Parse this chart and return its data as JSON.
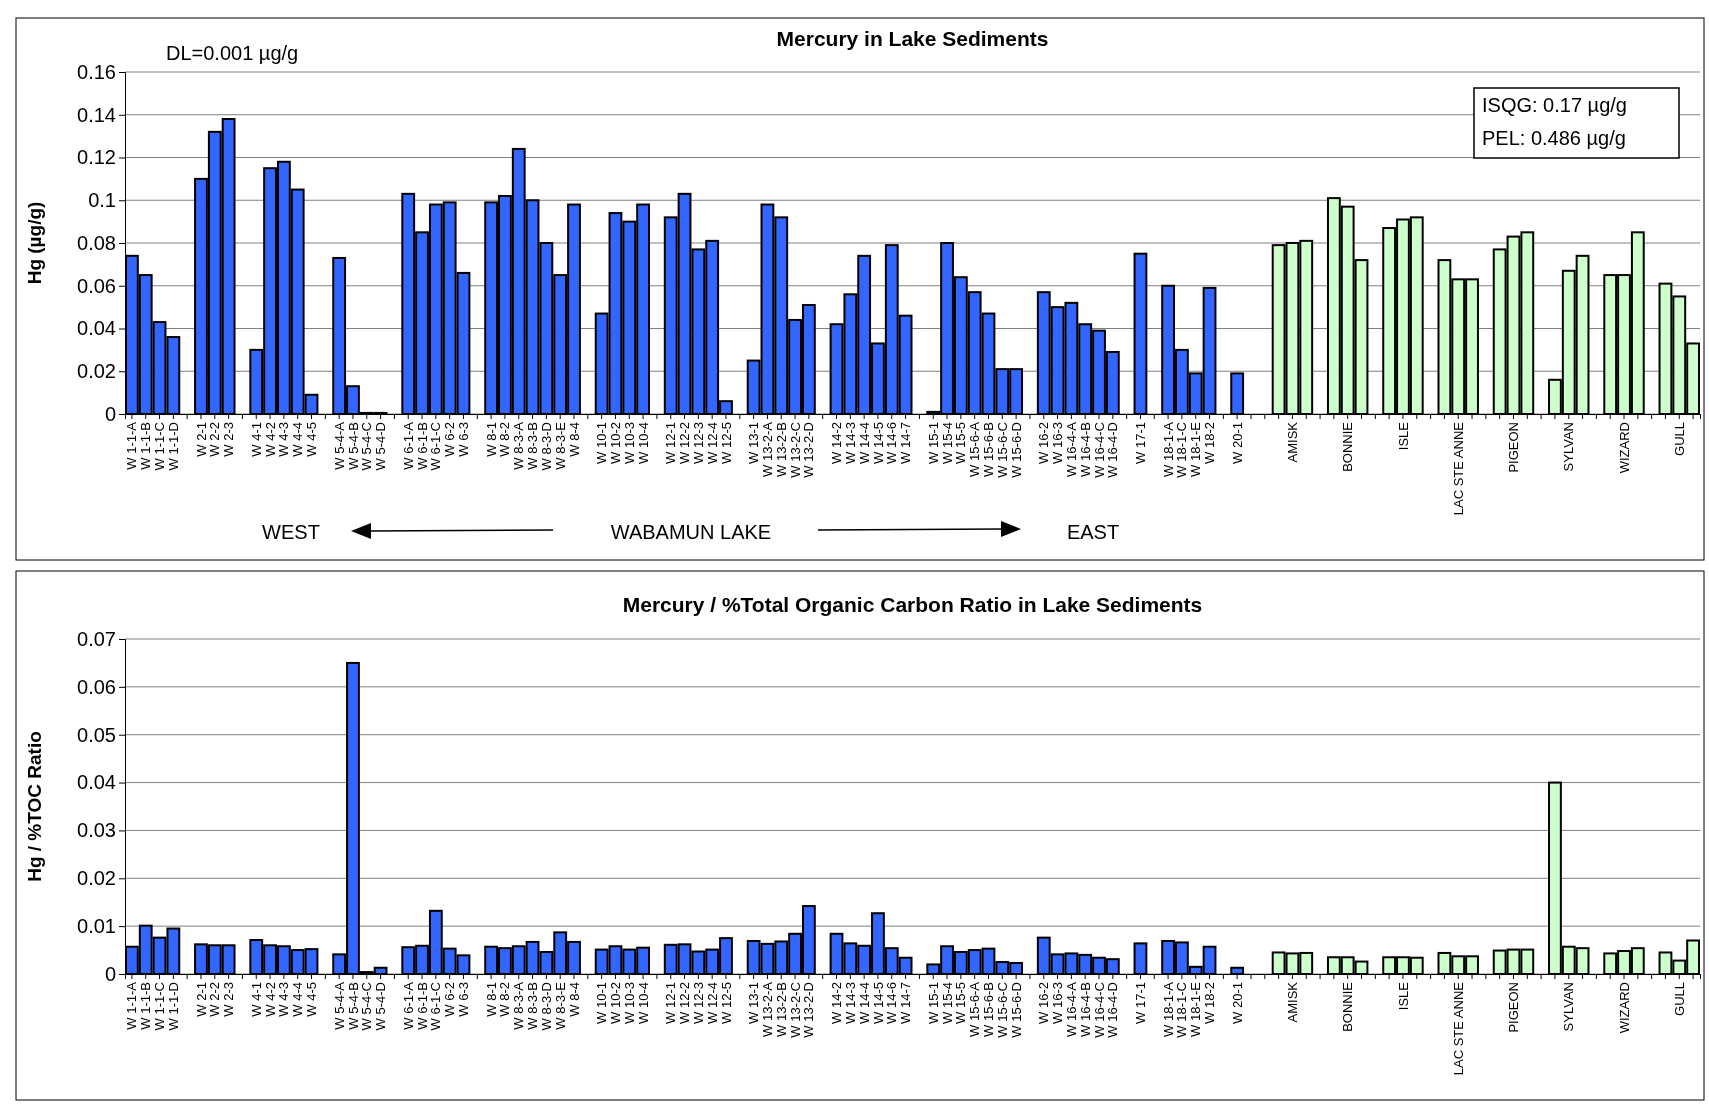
{
  "chart_data": [
    {
      "type": "bar",
      "title": "Mercury in Lake Sediments",
      "ylabel": "Hg (µg/g)",
      "categories": [
        "W 1-1-A",
        "W 1-1-B",
        "W 1-1-C",
        "W 1-1-D",
        null,
        "W 2-1",
        "W 2-2",
        "W 2-3",
        null,
        "W 4-1",
        "W 4-2",
        "W 4-3",
        "W 4-4",
        "W 4-5",
        null,
        "W 5-4-A",
        "W 5-4-B",
        "W 5-4-C",
        "W 5-4-D",
        null,
        "W 6-1-A",
        "W 6-1-B",
        "W 6-1-C",
        "W 6-2",
        "W 6-3",
        null,
        "W 8-1",
        "W 8-2",
        "W 8-3-A",
        "W 8-3-B",
        "W 8-3-D",
        "W 8-3-E",
        "W 8-4",
        null,
        "W 10-1",
        "W 10-2",
        "W 10-3",
        "W 10-4",
        null,
        "W 12-1",
        "W 12-2",
        "W 12-3",
        "W 12-4",
        "W 12-5",
        null,
        "W 13-1",
        "W 13-2-A",
        "W 13-2-B",
        "W 13-2-C",
        "W 13-2-D",
        null,
        "W 14-2",
        "W 14-3",
        "W 14-4",
        "W 14-5",
        "W 14-6",
        "W 14-7",
        null,
        "W 15-1",
        "W 15-4",
        "W 15-5",
        "W 15-6-A",
        "W 15-6-B",
        "W 15-6-C",
        "W 15-6-D",
        null,
        "W 16-2",
        "W 16-3",
        "W 16-4-A",
        "W 16-4-B",
        "W 16-4-C",
        "W 16-4-D",
        null,
        "W 17-1",
        null,
        "W 18-1-A",
        "W 18-1-C",
        "W 18-1-E",
        "W 18-2",
        null,
        "W 20-1",
        null,
        null,
        null,
        "AMISK",
        null,
        null,
        null,
        "BONNIE",
        null,
        null,
        null,
        "ISLE",
        null,
        null,
        null,
        "LAC STE ANNE",
        null,
        null,
        null,
        "PIGEON",
        null,
        null,
        null,
        "SYLVAN",
        null,
        null,
        null,
        "WIZARD",
        null,
        null,
        null,
        "GULL",
        null
      ],
      "values": [
        0.074,
        0.065,
        0.043,
        0.036,
        null,
        0.11,
        0.132,
        0.138,
        null,
        0.03,
        0.115,
        0.118,
        0.105,
        0.009,
        null,
        0.073,
        0.013,
        0.0005,
        0.0005,
        null,
        0.103,
        0.085,
        0.098,
        0.099,
        0.066,
        null,
        0.099,
        0.102,
        0.124,
        0.1,
        0.08,
        0.065,
        0.098,
        null,
        0.047,
        0.094,
        0.09,
        0.098,
        null,
        0.092,
        0.103,
        0.077,
        0.081,
        0.006,
        null,
        0.025,
        0.098,
        0.092,
        0.044,
        0.051,
        null,
        0.042,
        0.056,
        0.074,
        0.033,
        0.079,
        0.046,
        null,
        0.001,
        0.08,
        0.064,
        0.057,
        0.047,
        0.021,
        0.021,
        null,
        0.057,
        0.05,
        0.052,
        0.042,
        0.039,
        0.029,
        null,
        0.075,
        null,
        0.06,
        0.03,
        0.019,
        0.059,
        null,
        0.019,
        null,
        null,
        0.079,
        0.08,
        0.081,
        null,
        0.101,
        0.097,
        0.072,
        null,
        0.087,
        0.091,
        0.092,
        null,
        0.072,
        0.063,
        0.063,
        null,
        0.077,
        0.083,
        0.085,
        null,
        0.016,
        0.067,
        0.074,
        null,
        0.065,
        0.065,
        0.085,
        null,
        0.061,
        0.055,
        0.033
      ],
      "colors": [
        "#3366ff",
        "#3366ff",
        "#3366ff",
        "#3366ff",
        null,
        "#3366ff",
        "#3366ff",
        "#3366ff",
        null,
        "#3366ff",
        "#3366ff",
        "#3366ff",
        "#3366ff",
        "#3366ff",
        null,
        "#3366ff",
        "#3366ff",
        "#3366ff",
        "#3366ff",
        null,
        "#3366ff",
        "#3366ff",
        "#3366ff",
        "#3366ff",
        "#3366ff",
        null,
        "#3366ff",
        "#3366ff",
        "#3366ff",
        "#3366ff",
        "#3366ff",
        "#3366ff",
        "#3366ff",
        null,
        "#3366ff",
        "#3366ff",
        "#3366ff",
        "#3366ff",
        null,
        "#3366ff",
        "#3366ff",
        "#3366ff",
        "#3366ff",
        "#3366ff",
        null,
        "#3366ff",
        "#3366ff",
        "#3366ff",
        "#3366ff",
        "#3366ff",
        null,
        "#3366ff",
        "#3366ff",
        "#3366ff",
        "#3366ff",
        "#3366ff",
        "#3366ff",
        null,
        "#3366ff",
        "#3366ff",
        "#3366ff",
        "#3366ff",
        "#3366ff",
        "#3366ff",
        "#3366ff",
        null,
        "#3366ff",
        "#3366ff",
        "#3366ff",
        "#3366ff",
        "#3366ff",
        "#3366ff",
        null,
        "#3366ff",
        null,
        "#3366ff",
        "#3366ff",
        "#3366ff",
        "#3366ff",
        null,
        "#3366ff",
        null,
        null,
        "#ccffcc",
        "#ccffcc",
        "#ccffcc",
        null,
        "#ccffcc",
        "#ccffcc",
        "#ccffcc",
        null,
        "#ccffcc",
        "#ccffcc",
        "#ccffcc",
        null,
        "#ccffcc",
        "#ccffcc",
        "#ccffcc",
        null,
        "#ccffcc",
        "#ccffcc",
        "#ccffcc",
        null,
        "#ccffcc",
        "#ccffcc",
        "#ccffcc",
        null,
        "#ccffcc",
        "#ccffcc",
        "#ccffcc",
        null,
        "#ccffcc",
        "#ccffcc",
        "#ccffcc"
      ],
      "ylim": [
        0,
        0.16
      ],
      "yticks": [
        0,
        0.02,
        0.04,
        0.06,
        0.08,
        0.1,
        0.12,
        0.14,
        0.16
      ],
      "grid": "y",
      "annotations": [
        "DL=0.001 µg/g",
        "ISQG: 0.17 µg/g",
        "PEL: 0.486 µg/g",
        "WEST",
        "WABAMUN LAKE",
        "EAST"
      ]
    },
    {
      "type": "bar",
      "title": "Mercury / %Total Organic Carbon Ratio in Lake Sediments",
      "ylabel": "Hg / %TOC Ratio",
      "categories": [
        "W 1-1-A",
        "W 1-1-B",
        "W 1-1-C",
        "W 1-1-D",
        null,
        "W 2-1",
        "W 2-2",
        "W 2-3",
        null,
        "W 4-1",
        "W 4-2",
        "W 4-3",
        "W 4-4",
        "W 4-5",
        null,
        "W 5-4-A",
        "W 5-4-B",
        "W 5-4-C",
        "W 5-4-D",
        null,
        "W 6-1-A",
        "W 6-1-B",
        "W 6-1-C",
        "W 6-2",
        "W 6-3",
        null,
        "W 8-1",
        "W 8-2",
        "W 8-3-A",
        "W 8-3-B",
        "W 8-3-D",
        "W 8-3-E",
        "W 8-4",
        null,
        "W 10-1",
        "W 10-2",
        "W 10-3",
        "W 10-4",
        null,
        "W 12-1",
        "W 12-2",
        "W 12-3",
        "W 12-4",
        "W 12-5",
        null,
        "W 13-1",
        "W 13-2-A",
        "W 13-2-B",
        "W 13-2-C",
        "W 13-2-D",
        null,
        "W 14-2",
        "W 14-3",
        "W 14-4",
        "W 14-5",
        "W 14-6",
        "W 14-7",
        null,
        "W 15-1",
        "W 15-4",
        "W 15-5",
        "W 15-6-A",
        "W 15-6-B",
        "W 15-6-C",
        "W 15-6-D",
        null,
        "W 16-2",
        "W 16-3",
        "W 16-4-A",
        "W 16-4-B",
        "W 16-4-C",
        "W 16-4-D",
        null,
        "W 17-1",
        null,
        "W 18-1-A",
        "W 18-1-C",
        "W 18-1-E",
        "W 18-2",
        null,
        "W 20-1",
        null,
        null,
        null,
        "AMISK",
        null,
        null,
        null,
        "BONNIE",
        null,
        null,
        null,
        "ISLE",
        null,
        null,
        null,
        "LAC STE ANNE",
        null,
        null,
        null,
        "PIGEON",
        null,
        null,
        null,
        "SYLVAN",
        null,
        null,
        null,
        "WIZARD",
        null,
        null,
        null,
        "GULL",
        null
      ],
      "values": [
        0.0057,
        0.0101,
        0.0076,
        0.0095,
        null,
        0.0062,
        0.006,
        0.006,
        null,
        0.0071,
        0.006,
        0.0058,
        0.005,
        0.0052,
        null,
        0.0041,
        0.065,
        0.0004,
        0.0013,
        null,
        0.0056,
        0.0059,
        0.0132,
        0.0053,
        0.0039,
        null,
        0.0057,
        0.0054,
        0.0058,
        0.0067,
        0.0046,
        0.0087,
        0.0067,
        null,
        0.0051,
        0.0058,
        0.0051,
        0.0055,
        null,
        0.0061,
        0.0062,
        0.0047,
        0.0051,
        0.0075,
        null,
        0.0069,
        0.0063,
        0.0068,
        0.0084,
        0.0142,
        null,
        0.0084,
        0.0064,
        0.0059,
        0.0127,
        0.0054,
        0.0034,
        null,
        0.002,
        0.0058,
        0.0046,
        0.005,
        0.0053,
        0.0025,
        0.0023,
        null,
        0.0076,
        0.0041,
        0.0043,
        0.004,
        0.0034,
        0.0031,
        null,
        0.0064,
        null,
        0.0069,
        0.0066,
        0.0015,
        0.0057,
        null,
        0.0013,
        null,
        null,
        0.0045,
        0.0043,
        0.0044,
        null,
        0.0035,
        0.0035,
        0.0026,
        null,
        0.0035,
        0.0035,
        0.0034,
        null,
        0.0044,
        0.0037,
        0.0037,
        null,
        0.0049,
        0.0051,
        0.0051,
        null,
        0.04,
        0.0057,
        0.0054,
        null,
        0.0043,
        0.0048,
        0.0054,
        null,
        0.0045,
        0.0028,
        0.007
      ],
      "colors": [
        "#3366ff",
        "#3366ff",
        "#3366ff",
        "#3366ff",
        null,
        "#3366ff",
        "#3366ff",
        "#3366ff",
        null,
        "#3366ff",
        "#3366ff",
        "#3366ff",
        "#3366ff",
        "#3366ff",
        null,
        "#3366ff",
        "#3366ff",
        "#3366ff",
        "#3366ff",
        null,
        "#3366ff",
        "#3366ff",
        "#3366ff",
        "#3366ff",
        "#3366ff",
        null,
        "#3366ff",
        "#3366ff",
        "#3366ff",
        "#3366ff",
        "#3366ff",
        "#3366ff",
        "#3366ff",
        null,
        "#3366ff",
        "#3366ff",
        "#3366ff",
        "#3366ff",
        null,
        "#3366ff",
        "#3366ff",
        "#3366ff",
        "#3366ff",
        "#3366ff",
        null,
        "#3366ff",
        "#3366ff",
        "#3366ff",
        "#3366ff",
        "#3366ff",
        null,
        "#3366ff",
        "#3366ff",
        "#3366ff",
        "#3366ff",
        "#3366ff",
        "#3366ff",
        null,
        "#3366ff",
        "#3366ff",
        "#3366ff",
        "#3366ff",
        "#3366ff",
        "#3366ff",
        "#3366ff",
        null,
        "#3366ff",
        "#3366ff",
        "#3366ff",
        "#3366ff",
        "#3366ff",
        "#3366ff",
        null,
        "#3366ff",
        null,
        "#3366ff",
        "#3366ff",
        "#3366ff",
        "#3366ff",
        null,
        "#3366ff",
        null,
        null,
        "#ccffcc",
        "#ccffcc",
        "#ccffcc",
        null,
        "#ccffcc",
        "#ccffcc",
        "#ccffcc",
        null,
        "#ccffcc",
        "#ccffcc",
        "#ccffcc",
        null,
        "#ccffcc",
        "#ccffcc",
        "#ccffcc",
        null,
        "#ccffcc",
        "#ccffcc",
        "#ccffcc",
        null,
        "#ccffcc",
        "#ccffcc",
        "#ccffcc",
        null,
        "#ccffcc",
        "#ccffcc",
        "#ccffcc",
        null,
        "#ccffcc",
        "#ccffcc",
        "#ccffcc"
      ],
      "ylim": [
        0,
        0.07
      ],
      "yticks": [
        0,
        0.01,
        0.02,
        0.03,
        0.04,
        0.05,
        0.06,
        0.07
      ],
      "grid": "y"
    }
  ]
}
